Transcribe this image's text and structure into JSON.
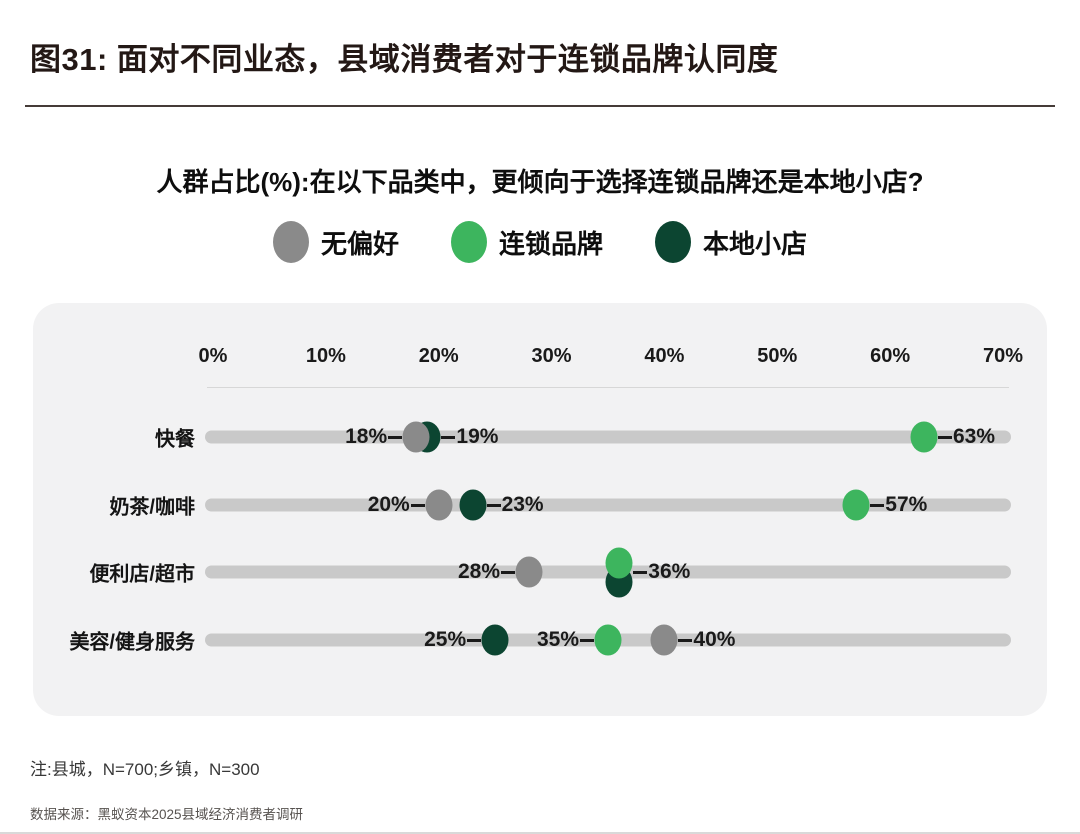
{
  "header": {
    "title": "图31: 面对不同业态，县域消费者对于连锁品牌认同度"
  },
  "colors": {
    "no_preference": "#8a8a8a",
    "chain": "#3db55e",
    "local": "#0c4531",
    "track": "#c9c9c9",
    "panel_bg": "#f2f2f3"
  },
  "legend": {
    "items": [
      {
        "key": "no_preference",
        "label": "无偏好",
        "color": "#8a8a8a"
      },
      {
        "key": "chain",
        "label": "连锁品牌",
        "color": "#3db55e"
      },
      {
        "key": "local",
        "label": "本地小店",
        "color": "#0c4531"
      }
    ]
  },
  "chart_data": {
    "type": "scatter",
    "subtype": "dot-plot-dumbbell",
    "title": "人群占比(%):在以下品类中，更倾向于选择连锁品牌还是本地小店?",
    "xlabel": "人群占比(%)",
    "ylabel": "",
    "x_axis": {
      "min": 0,
      "max": 70,
      "unit": "%",
      "ticks": [
        "0%",
        "10%",
        "20%",
        "30%",
        "40%",
        "50%",
        "60%",
        "70%"
      ]
    },
    "grid": false,
    "legend_position": "top-center",
    "categories": [
      "快餐",
      "奶茶/咖啡",
      "便利店/超市",
      "美容/健身服务"
    ],
    "series": [
      {
        "key": "no_preference",
        "name": "无偏好",
        "color": "#8a8a8a",
        "values": [
          18,
          20,
          28,
          40
        ]
      },
      {
        "key": "chain",
        "name": "连锁品牌",
        "color": "#3db55e",
        "values": [
          63,
          57,
          36,
          35
        ]
      },
      {
        "key": "local",
        "name": "本地小店",
        "color": "#0c4531",
        "values": [
          19,
          23,
          36,
          25
        ]
      }
    ],
    "rows": [
      {
        "label": "快餐",
        "points": [
          {
            "series": "local",
            "value": 19,
            "label": "19%",
            "side": "right",
            "dot_dy": 0
          },
          {
            "series": "no_preference",
            "value": 18,
            "label": "18%",
            "side": "left",
            "dot_dy": 0
          },
          {
            "series": "chain",
            "value": 63,
            "label": "63%",
            "side": "right",
            "dot_dy": 0
          }
        ]
      },
      {
        "label": "奶茶/咖啡",
        "points": [
          {
            "series": "no_preference",
            "value": 20,
            "label": "20%",
            "side": "left",
            "dot_dy": 0
          },
          {
            "series": "local",
            "value": 23,
            "label": "23%",
            "side": "right",
            "dot_dy": 0
          },
          {
            "series": "chain",
            "value": 57,
            "label": "57%",
            "side": "right",
            "dot_dy": 0
          }
        ]
      },
      {
        "label": "便利店/超市",
        "points": [
          {
            "series": "no_preference",
            "value": 28,
            "label": "28%",
            "side": "left",
            "dot_dy": 0
          },
          {
            "series": "local",
            "value": 36,
            "label": "",
            "side": "none",
            "dot_dy": 10
          },
          {
            "series": "chain",
            "value": 36,
            "label": "36%",
            "side": "right",
            "dot_dy": -9
          }
        ]
      },
      {
        "label": "美容/健身服务",
        "points": [
          {
            "series": "local",
            "value": 25,
            "label": "25%",
            "side": "left",
            "dot_dy": 0
          },
          {
            "series": "chain",
            "value": 35,
            "label": "35%",
            "side": "left",
            "dot_dy": 0
          },
          {
            "series": "no_preference",
            "value": 40,
            "label": "40%",
            "side": "right",
            "dot_dy": 0
          }
        ]
      }
    ]
  },
  "footer": {
    "note": "注:县城，N=700;乡镇，N=300",
    "source": "数据来源：黑蚁资本2025县域经济消费者调研"
  }
}
